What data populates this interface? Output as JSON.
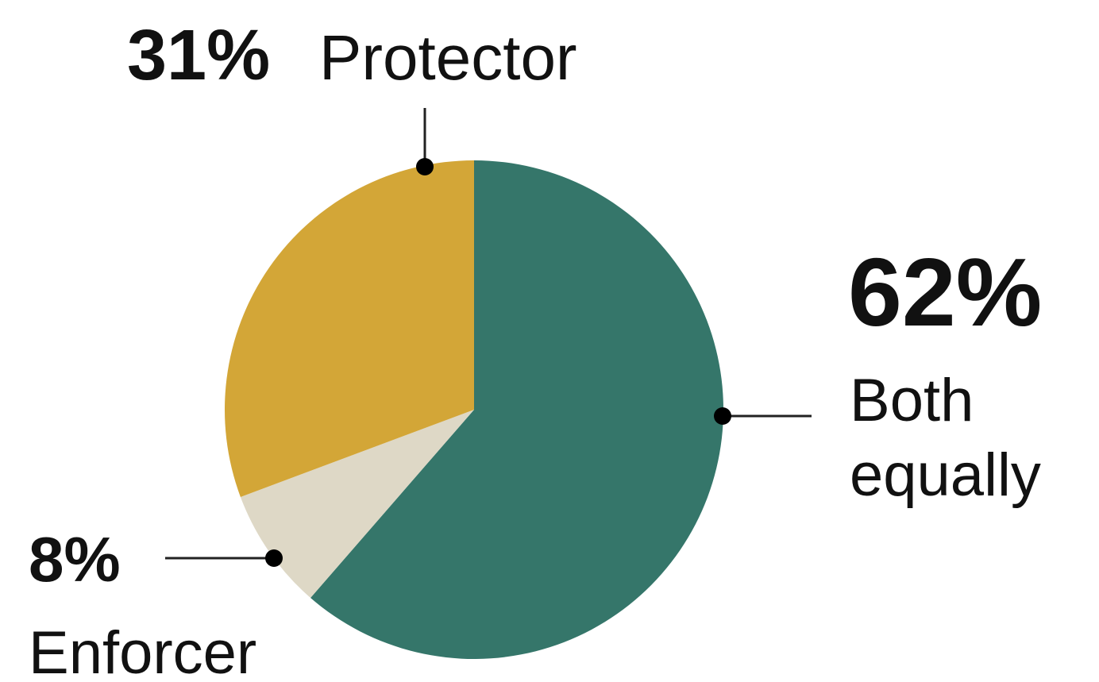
{
  "chart_data": {
    "type": "pie",
    "start_angle_deg": 0,
    "direction": "clockwise",
    "slices": [
      {
        "label": "Both equally",
        "value": 62,
        "value_label": "62%",
        "name_lines": [
          "Both",
          "equally"
        ],
        "color": "#35766a"
      },
      {
        "label": "Enforcer",
        "value": 8,
        "value_label": "8%",
        "name_lines": [
          "Enforcer"
        ],
        "color": "#ded8c6"
      },
      {
        "label": "Protector",
        "value": 31,
        "value_label": "31%",
        "name_lines": [
          "Protector"
        ],
        "color": "#d3a637"
      }
    ]
  }
}
